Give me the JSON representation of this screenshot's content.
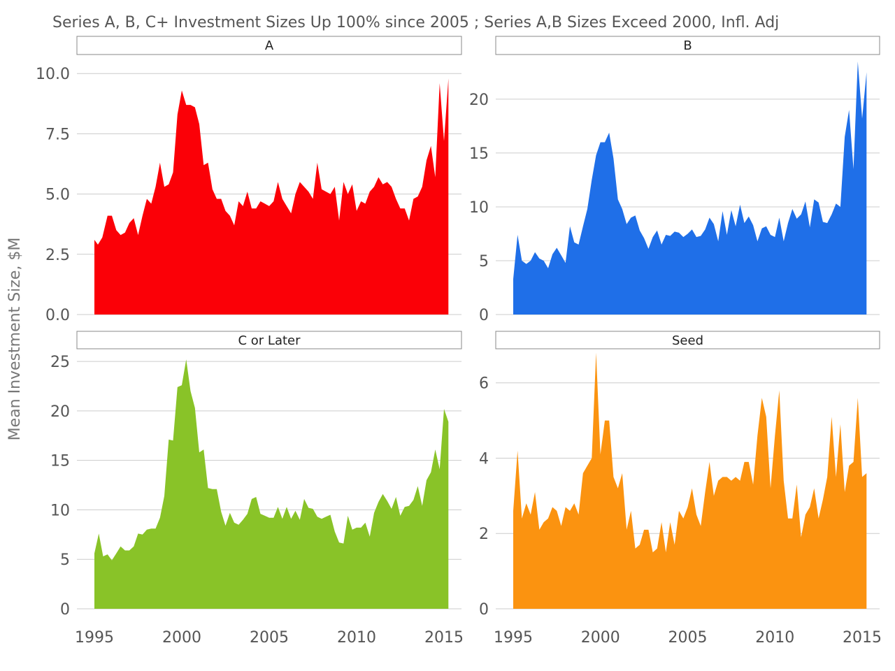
{
  "chart_data": {
    "type": "area",
    "title": "Series A, B, C+ Investment Sizes Up 100% since 2005 ; Series A,B Sizes Exceed 2000, Infl. Adj",
    "ylabel": "Mean Investment Size, $M",
    "xlabel": "",
    "xlim": [
      1994,
      2016
    ],
    "xticks": [
      1995,
      2000,
      2005,
      2010,
      2015
    ],
    "grid": true,
    "legend": "none",
    "panels": [
      {
        "name": "A",
        "color": "#fb0007",
        "ylim": [
          0,
          10.5
        ],
        "yticks": [
          0.0,
          2.5,
          5.0,
          7.5,
          10.0
        ],
        "ytick_labels": [
          "0.0",
          "2.5",
          "5.0",
          "7.5",
          "10.0"
        ],
        "x": [
          1995.0,
          1995.2,
          1995.45,
          1995.75,
          1996.0,
          1996.25,
          1996.5,
          1996.75,
          1997.0,
          1997.25,
          1997.5,
          1997.75,
          1998.0,
          1998.25,
          1998.5,
          1998.75,
          1999.0,
          1999.25,
          1999.5,
          1999.75,
          2000.0,
          2000.25,
          2000.5,
          2000.75,
          2001.0,
          2001.25,
          2001.5,
          2001.75,
          2002.0,
          2002.25,
          2002.5,
          2002.75,
          2003.0,
          2003.25,
          2003.5,
          2003.75,
          2004.0,
          2004.25,
          2004.5,
          2004.75,
          2005.0,
          2005.25,
          2005.5,
          2005.75,
          2006.0,
          2006.25,
          2006.5,
          2006.75,
          2007.0,
          2007.25,
          2007.5,
          2007.75,
          2008.0,
          2008.25,
          2008.5,
          2008.75,
          2009.0,
          2009.25,
          2009.5,
          2009.75,
          2010.0,
          2010.25,
          2010.5,
          2010.75,
          2011.0,
          2011.25,
          2011.5,
          2011.75,
          2012.0,
          2012.25,
          2012.5,
          2012.75,
          2013.0,
          2013.25,
          2013.5,
          2013.75,
          2014.0,
          2014.25,
          2014.5,
          2014.75,
          2015.0,
          2015.25
        ],
        "y": [
          3.1,
          2.9,
          3.2,
          4.1,
          4.1,
          3.5,
          3.3,
          3.4,
          3.8,
          4.0,
          3.3,
          4.1,
          4.8,
          4.6,
          5.3,
          6.3,
          5.3,
          5.4,
          5.9,
          8.3,
          9.3,
          8.7,
          8.7,
          8.6,
          7.9,
          6.2,
          6.3,
          5.2,
          4.8,
          4.8,
          4.3,
          4.1,
          3.7,
          4.7,
          4.5,
          5.1,
          4.4,
          4.4,
          4.7,
          4.6,
          4.5,
          4.7,
          5.5,
          4.8,
          4.5,
          4.2,
          5.0,
          5.5,
          5.3,
          5.1,
          4.8,
          6.3,
          5.2,
          5.1,
          5.0,
          5.3,
          3.9,
          5.5,
          5.0,
          5.4,
          4.3,
          4.7,
          4.6,
          5.1,
          5.3,
          5.7,
          5.4,
          5.5,
          5.3,
          4.8,
          4.4,
          4.4,
          3.9,
          4.8,
          4.9,
          5.3,
          6.4,
          7.0,
          5.7,
          9.6,
          7.2,
          9.8
        ]
      },
      {
        "name": "B",
        "color": "#1f6fe8",
        "ylim": [
          0,
          23.5
        ],
        "yticks": [
          0,
          5,
          10,
          15,
          20
        ],
        "ytick_labels": [
          "0",
          "5",
          "10",
          "15",
          "20"
        ],
        "x": [
          1995.0,
          1995.25,
          1995.5,
          1995.75,
          1996.0,
          1996.25,
          1996.5,
          1996.75,
          1997.0,
          1997.25,
          1997.5,
          1997.75,
          1998.0,
          1998.25,
          1998.5,
          1998.75,
          1999.0,
          1999.25,
          1999.5,
          1999.75,
          2000.0,
          2000.25,
          2000.5,
          2000.75,
          2001.0,
          2001.25,
          2001.5,
          2001.75,
          2002.0,
          2002.25,
          2002.5,
          2002.75,
          2003.0,
          2003.25,
          2003.5,
          2003.75,
          2004.0,
          2004.25,
          2004.5,
          2004.75,
          2005.0,
          2005.25,
          2005.5,
          2005.75,
          2006.0,
          2006.25,
          2006.5,
          2006.75,
          2007.0,
          2007.25,
          2007.5,
          2007.75,
          2008.0,
          2008.25,
          2008.5,
          2008.75,
          2009.0,
          2009.25,
          2009.5,
          2009.75,
          2010.0,
          2010.25,
          2010.5,
          2010.75,
          2011.0,
          2011.25,
          2011.5,
          2011.75,
          2012.0,
          2012.25,
          2012.5,
          2012.75,
          2013.0,
          2013.25,
          2013.5,
          2013.75,
          2014.0,
          2014.25,
          2014.5,
          2014.75,
          2015.0,
          2015.25
        ],
        "y": [
          3.3,
          7.4,
          5.0,
          4.7,
          5.0,
          5.8,
          5.2,
          5.0,
          4.3,
          5.6,
          6.2,
          5.5,
          4.8,
          8.2,
          6.7,
          6.5,
          8.2,
          9.8,
          12.5,
          14.8,
          16.0,
          16.0,
          16.9,
          14.5,
          10.7,
          9.8,
          8.4,
          9.0,
          9.2,
          7.8,
          7.1,
          6.1,
          7.2,
          7.8,
          6.5,
          7.4,
          7.3,
          7.7,
          7.6,
          7.2,
          7.5,
          7.9,
          7.2,
          7.3,
          7.9,
          9.0,
          8.4,
          6.8,
          9.6,
          7.4,
          9.7,
          8.2,
          10.2,
          8.5,
          9.1,
          8.3,
          6.8,
          8.0,
          8.2,
          7.4,
          7.2,
          9.0,
          6.8,
          8.5,
          9.8,
          8.9,
          9.3,
          10.5,
          8.1,
          10.7,
          10.4,
          8.6,
          8.5,
          9.3,
          10.3,
          10.0,
          16.5,
          19.0,
          13.5,
          23.5,
          18.2,
          22.5
        ]
      },
      {
        "name": "C or Later",
        "color": "#89c328",
        "ylim": [
          0,
          25.5
        ],
        "yticks": [
          0,
          5,
          10,
          15,
          20,
          25
        ],
        "ytick_labels": [
          "0",
          "5",
          "10",
          "15",
          "20",
          "25"
        ],
        "x": [
          1995.0,
          1995.25,
          1995.5,
          1995.75,
          1996.0,
          1996.25,
          1996.5,
          1996.75,
          1997.0,
          1997.25,
          1997.5,
          1997.75,
          1998.0,
          1998.25,
          1998.5,
          1998.75,
          1999.0,
          1999.25,
          1999.5,
          1999.75,
          2000.0,
          2000.25,
          2000.5,
          2000.75,
          2001.0,
          2001.25,
          2001.5,
          2001.75,
          2002.0,
          2002.25,
          2002.5,
          2002.75,
          2003.0,
          2003.25,
          2003.5,
          2003.75,
          2004.0,
          2004.25,
          2004.5,
          2004.75,
          2005.0,
          2005.25,
          2005.5,
          2005.75,
          2006.0,
          2006.25,
          2006.5,
          2006.75,
          2007.0,
          2007.25,
          2007.5,
          2007.75,
          2008.0,
          2008.25,
          2008.5,
          2008.75,
          2009.0,
          2009.25,
          2009.5,
          2009.75,
          2010.0,
          2010.25,
          2010.5,
          2010.75,
          2011.0,
          2011.25,
          2011.5,
          2011.75,
          2012.0,
          2012.25,
          2012.5,
          2012.75,
          2013.0,
          2013.25,
          2013.5,
          2013.75,
          2014.0,
          2014.25,
          2014.5,
          2014.75,
          2015.0,
          2015.25
        ],
        "y": [
          5.6,
          7.6,
          5.3,
          5.5,
          4.9,
          5.6,
          6.3,
          5.9,
          5.9,
          6.3,
          7.6,
          7.5,
          8.0,
          8.1,
          8.1,
          9.2,
          11.4,
          17.1,
          17.0,
          22.4,
          22.6,
          25.2,
          22.0,
          20.3,
          15.8,
          16.1,
          12.2,
          12.1,
          12.1,
          9.8,
          8.4,
          9.7,
          8.7,
          8.5,
          9.0,
          9.6,
          11.1,
          11.3,
          9.6,
          9.4,
          9.2,
          9.2,
          10.3,
          9.1,
          10.3,
          9.1,
          9.9,
          9.0,
          11.1,
          10.2,
          10.1,
          9.3,
          9.1,
          9.3,
          9.5,
          7.8,
          6.7,
          6.6,
          9.4,
          8.0,
          8.2,
          8.2,
          8.7,
          7.3,
          9.7,
          10.8,
          11.6,
          10.9,
          10.1,
          11.3,
          9.4,
          10.3,
          10.4,
          11.0,
          12.4,
          10.4,
          13.0,
          13.8,
          16.1,
          14.1,
          20.2,
          18.9
        ]
      },
      {
        "name": "Seed",
        "color": "#fb9310",
        "ylim": [
          0,
          6.7
        ],
        "yticks": [
          0,
          2,
          4,
          6
        ],
        "ytick_labels": [
          "0",
          "2",
          "4",
          "6"
        ],
        "x": [
          1995.0,
          1995.25,
          1995.5,
          1995.75,
          1996.0,
          1996.25,
          1996.5,
          1996.75,
          1997.0,
          1997.25,
          1997.5,
          1997.75,
          1998.0,
          1998.25,
          1998.5,
          1998.75,
          1999.0,
          1999.25,
          1999.5,
          1999.75,
          2000.0,
          2000.25,
          2000.5,
          2000.75,
          2001.0,
          2001.25,
          2001.5,
          2001.75,
          2002.0,
          2002.25,
          2002.5,
          2002.75,
          2003.0,
          2003.25,
          2003.5,
          2003.75,
          2004.0,
          2004.25,
          2004.5,
          2004.75,
          2005.0,
          2005.25,
          2005.5,
          2005.75,
          2006.0,
          2006.25,
          2006.5,
          2006.75,
          2007.0,
          2007.25,
          2007.5,
          2007.75,
          2008.0,
          2008.25,
          2008.5,
          2008.75,
          2009.0,
          2009.25,
          2009.5,
          2009.75,
          2010.0,
          2010.25,
          2010.5,
          2010.75,
          2011.0,
          2011.25,
          2011.5,
          2011.75,
          2012.0,
          2012.25,
          2012.5,
          2012.75,
          2013.0,
          2013.25,
          2013.5,
          2013.75,
          2014.0,
          2014.25,
          2014.5,
          2014.75,
          2015.0,
          2015.25
        ],
        "y": [
          2.6,
          4.2,
          2.4,
          2.8,
          2.5,
          3.1,
          2.1,
          2.3,
          2.4,
          2.7,
          2.6,
          2.2,
          2.7,
          2.6,
          2.8,
          2.5,
          3.6,
          3.8,
          4.0,
          6.8,
          4.1,
          5.0,
          5.0,
          3.5,
          3.2,
          3.6,
          2.1,
          2.6,
          1.6,
          1.7,
          2.1,
          2.1,
          1.5,
          1.6,
          2.3,
          1.5,
          2.3,
          1.7,
          2.6,
          2.4,
          2.7,
          3.2,
          2.5,
          2.2,
          3.1,
          3.9,
          3.0,
          3.4,
          3.5,
          3.5,
          3.4,
          3.5,
          3.4,
          3.9,
          3.9,
          3.3,
          4.6,
          5.6,
          5.1,
          3.2,
          4.6,
          5.8,
          3.4,
          2.4,
          2.4,
          3.3,
          1.9,
          2.5,
          2.7,
          3.2,
          2.4,
          2.9,
          3.5,
          5.1,
          3.5,
          4.9,
          3.1,
          3.8,
          3.9,
          5.6,
          3.5,
          3.6
        ]
      }
    ]
  }
}
